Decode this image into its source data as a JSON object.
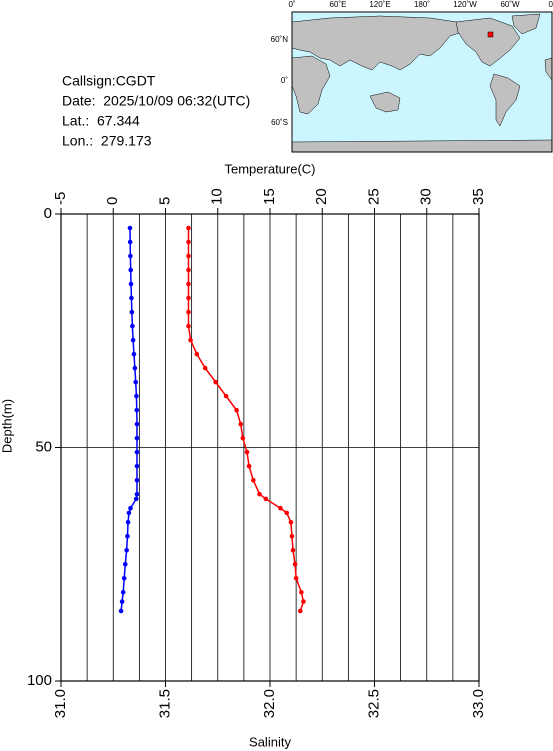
{
  "info": {
    "callsign": "Callsign:CGDT",
    "date": "Date:  2025/10/09 06:32(UTC)",
    "lat": "Lat.:  67.344",
    "lon": "Lon.:  279.173"
  },
  "map": {
    "top_labels": [
      "0˚",
      "60˚E",
      "120˚E",
      "180˚",
      "120˚W",
      "60˚W",
      "0˚"
    ],
    "left_labels": [
      "60˚N",
      "0˚",
      "60˚S"
    ]
  },
  "chart_data": {
    "type": "line",
    "ylabel": "Depth(m)",
    "ylim": [
      0,
      100
    ],
    "yticks": [
      0,
      50,
      100
    ],
    "ygrid": [
      50
    ],
    "xlabel": "Temperature(C)",
    "xlim": [
      -5,
      35
    ],
    "xticks": [
      -5,
      0,
      5,
      10,
      15,
      20,
      25,
      30,
      35
    ],
    "xgrid": [
      -2.5,
      0,
      2.5,
      5,
      7.5,
      10,
      12.5,
      15,
      17.5,
      20,
      22.5,
      25,
      27.5,
      30,
      32.5
    ],
    "x2label": "Salinity",
    "x2lim": [
      31,
      33
    ],
    "x2ticks": [
      {
        "value": 31,
        "label": "31.0"
      },
      {
        "value": 31.5,
        "label": "31.5"
      },
      {
        "value": 32,
        "label": "32.0"
      },
      {
        "value": 32.5,
        "label": "32.5"
      },
      {
        "value": 33,
        "label": "33.0"
      }
    ],
    "depth": [
      3,
      6,
      9,
      12,
      15,
      18,
      21,
      24,
      27,
      30,
      33,
      36,
      39,
      42,
      45,
      48,
      51,
      54,
      57,
      60,
      61,
      63,
      64,
      66,
      69,
      72,
      75,
      78,
      81,
      83,
      85
    ],
    "series": [
      {
        "color": "#0000ff",
        "axis": "x",
        "values": [
          1.6,
          1.62,
          1.64,
          1.67,
          1.7,
          1.74,
          1.78,
          1.83,
          1.9,
          1.98,
          2.07,
          2.15,
          2.22,
          2.25,
          2.27,
          2.27,
          2.27,
          2.27,
          2.27,
          2.27,
          2.2,
          1.65,
          1.5,
          1.42,
          1.36,
          1.28,
          1.15,
          1.05,
          0.95,
          0.85,
          0.75
        ]
      },
      {
        "color": "#ff0000",
        "axis": "x2",
        "values": [
          31.61,
          31.61,
          31.61,
          31.61,
          31.61,
          31.61,
          31.61,
          31.61,
          31.62,
          31.65,
          31.69,
          31.74,
          31.79,
          31.84,
          31.86,
          31.87,
          31.89,
          31.9,
          31.92,
          31.95,
          31.98,
          32.05,
          32.08,
          32.1,
          32.105,
          32.11,
          32.12,
          32.125,
          32.15,
          32.16,
          32.145
        ]
      }
    ]
  }
}
